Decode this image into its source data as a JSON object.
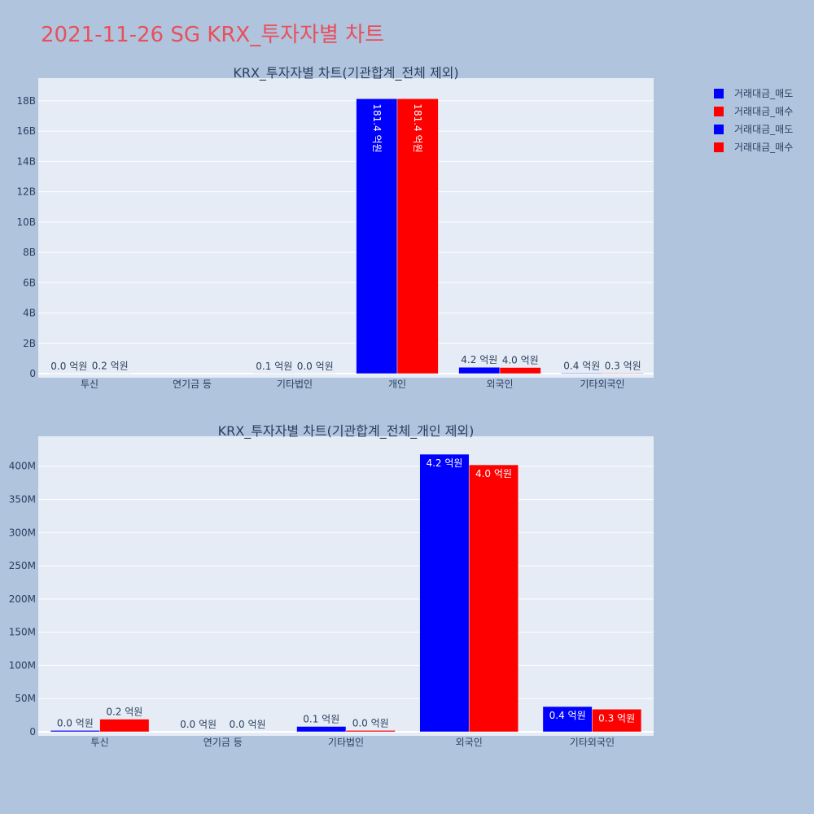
{
  "title": "2021-11-26 SG KRX_투자자별 차트",
  "legend": [
    {
      "label": "거래대금_매도",
      "color": "#0000ff"
    },
    {
      "label": "거래대금_매수",
      "color": "#ff0000"
    },
    {
      "label": "거래대금_매도",
      "color": "#0000ff"
    },
    {
      "label": "거래대금_매수",
      "color": "#ff0000"
    }
  ],
  "chart_data": [
    {
      "type": "bar",
      "title": "KRX_투자자별 차트(기관합계_전체 제외)",
      "categories": [
        "투신",
        "연기금 등",
        "기타법인",
        "개인",
        "외국인",
        "기타외국인"
      ],
      "series": [
        {
          "name": "거래대금_매도",
          "color": "#0000ff",
          "values": [
            2000000,
            0,
            8000000,
            18140000000,
            418000000,
            38000000
          ],
          "labels": [
            "0.0 억원",
            "",
            "0.1 억원",
            "181.4 억원",
            "4.2 억원",
            "0.4 억원"
          ]
        },
        {
          "name": "거래대금_매수",
          "color": "#ff0000",
          "values": [
            19000000,
            0,
            2000000,
            18140000000,
            402000000,
            34000000
          ],
          "labels": [
            "0.2 억원",
            "",
            "0.0 억원",
            "181.4 억원",
            "4.0 억원",
            "0.3 억원"
          ]
        }
      ],
      "ylim": [
        0,
        19500000000
      ],
      "yticks": [
        0,
        2000000000,
        4000000000,
        6000000000,
        8000000000,
        10000000000,
        12000000000,
        14000000000,
        16000000000,
        18000000000
      ],
      "ytick_labels": [
        "0",
        "2B",
        "4B",
        "6B",
        "8B",
        "10B",
        "12B",
        "14B",
        "16B",
        "18B"
      ],
      "grid": true
    },
    {
      "type": "bar",
      "title": "KRX_투자자별 차트(기관합계_전체_개인 제외)",
      "categories": [
        "투신",
        "연기금 등",
        "기타법인",
        "외국인",
        "기타외국인"
      ],
      "series": [
        {
          "name": "거래대금_매도",
          "color": "#0000ff",
          "values": [
            2000000,
            0,
            8000000,
            418000000,
            38000000
          ],
          "labels": [
            "0.0 억원",
            "0.0 억원",
            "0.1 억원",
            "4.2 억원",
            "0.4 억원"
          ]
        },
        {
          "name": "거래대금_매수",
          "color": "#ff0000",
          "values": [
            19000000,
            0,
            2000000,
            402000000,
            34000000
          ],
          "labels": [
            "0.2 억원",
            "0.0 억원",
            "0.0 억원",
            "4.0 억원",
            "0.3 억원"
          ]
        }
      ],
      "ylim": [
        0,
        445000000
      ],
      "yticks": [
        0,
        50000000,
        100000000,
        150000000,
        200000000,
        250000000,
        300000000,
        350000000,
        400000000
      ],
      "ytick_labels": [
        "0",
        "50M",
        "100M",
        "150M",
        "200M",
        "250M",
        "300M",
        "350M",
        "400M"
      ],
      "grid": true
    }
  ]
}
